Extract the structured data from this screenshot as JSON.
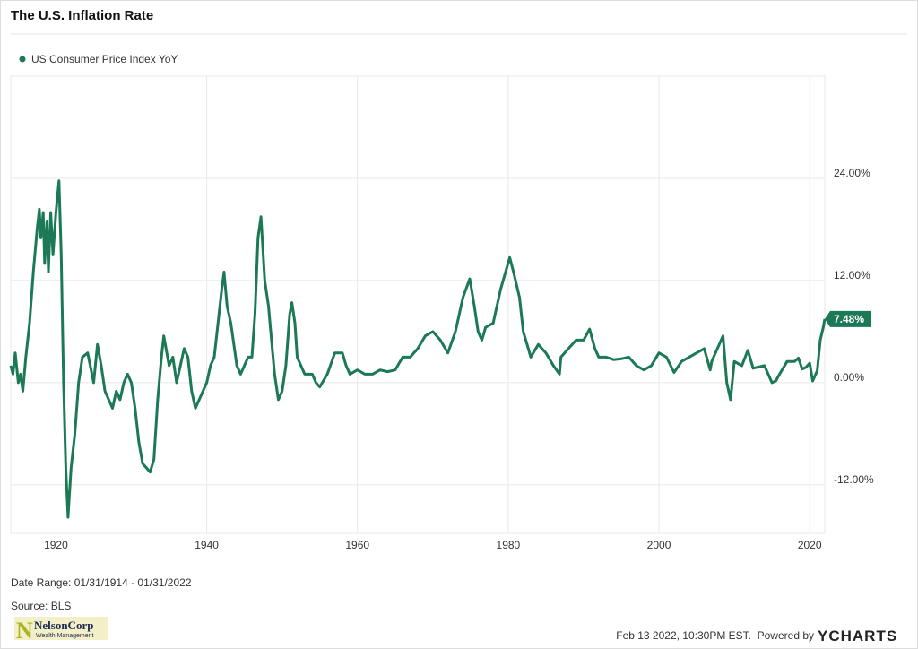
{
  "chart_data": {
    "type": "line",
    "title": "The U.S. Inflation Rate",
    "x": [
      1914.0,
      1914.3,
      1914.6,
      1915.0,
      1915.3,
      1915.6,
      1916.0,
      1916.5,
      1917.0,
      1917.5,
      1917.8,
      1918.0,
      1918.3,
      1918.5,
      1918.8,
      1919.0,
      1919.3,
      1919.6,
      1920.0,
      1920.4,
      1920.7,
      1921.0,
      1921.3,
      1921.6,
      1922.0,
      1922.5,
      1923.0,
      1923.5,
      1924.2,
      1925.0,
      1925.5,
      1926.0,
      1926.5,
      1927.0,
      1927.5,
      1928.0,
      1928.5,
      1929.0,
      1929.5,
      1930.0,
      1930.5,
      1931.0,
      1931.5,
      1932.0,
      1932.5,
      1933.0,
      1933.5,
      1934.0,
      1934.3,
      1935.0,
      1935.5,
      1936.0,
      1936.5,
      1937.0,
      1937.5,
      1938.0,
      1938.5,
      1939.0,
      1939.5,
      1940.0,
      1940.5,
      1941.0,
      1941.5,
      1942.0,
      1942.3,
      1942.7,
      1943.2,
      1944.0,
      1944.5,
      1945.0,
      1945.5,
      1946.0,
      1946.4,
      1946.8,
      1947.2,
      1947.7,
      1948.2,
      1948.7,
      1949.0,
      1949.5,
      1950.0,
      1950.5,
      1951.0,
      1951.3,
      1951.7,
      1952.0,
      1952.5,
      1953.0,
      1954.0,
      1954.5,
      1955.0,
      1956.0,
      1957.0,
      1958.0,
      1958.5,
      1959.0,
      1960.0,
      1961.0,
      1962.0,
      1963.0,
      1964.0,
      1965.0,
      1966.0,
      1967.0,
      1968.0,
      1969.0,
      1970.0,
      1971.0,
      1972.0,
      1973.0,
      1974.0,
      1974.9,
      1975.5,
      1976.0,
      1976.5,
      1977.0,
      1978.0,
      1979.0,
      1980.2,
      1980.7,
      1981.5,
      1982.0,
      1983.0,
      1984.0,
      1985.0,
      1986.0,
      1986.8,
      1987.0,
      1988.0,
      1989.0,
      1990.0,
      1990.8,
      1991.5,
      1992.0,
      1993.0,
      1994.0,
      1995.0,
      1996.0,
      1997.0,
      1998.0,
      1999.0,
      2000.0,
      2001.0,
      2002.0,
      2003.0,
      2004.0,
      2005.0,
      2006.0,
      2006.8,
      2007.0,
      2008.0,
      2008.5,
      2009.0,
      2009.5,
      2010.0,
      2011.0,
      2011.8,
      2012.5,
      2013.0,
      2014.0,
      2015.0,
      2015.5,
      2016.0,
      2017.0,
      2018.0,
      2018.5,
      2019.0,
      2019.5,
      2020.0,
      2020.4,
      2021.0,
      2021.4,
      2021.8,
      2022.0
    ],
    "series": [
      {
        "name": "US Consumer Price Index YoY",
        "color": "#1b7a55",
        "values": [
          2,
          1,
          3.5,
          0,
          1,
          -1,
          3,
          7,
          13,
          18,
          20.4,
          17,
          20,
          14,
          19,
          13,
          20,
          15,
          20,
          23.7,
          15,
          0,
          -10,
          -15.8,
          -10,
          -6,
          0,
          3,
          3.5,
          0,
          4.5,
          2,
          -1,
          -2,
          -3,
          -1,
          -2,
          0,
          1,
          0,
          -3,
          -7,
          -9.5,
          -10,
          -10.5,
          -9,
          -2,
          3,
          5.5,
          2,
          3,
          0,
          2,
          4,
          3,
          -1,
          -3,
          -2,
          -1,
          0,
          2,
          3,
          7,
          11,
          13,
          9,
          7,
          2,
          1,
          2,
          3,
          3,
          8,
          17,
          19.5,
          12,
          9,
          4,
          1,
          -2,
          -1,
          2,
          8,
          9.4,
          7,
          3,
          2,
          1,
          1,
          0,
          -0.5,
          1,
          3.5,
          3.5,
          2,
          1,
          1.5,
          1,
          1,
          1.5,
          1.3,
          1.5,
          3,
          3,
          4,
          5.5,
          6,
          5,
          3.5,
          6,
          10,
          12.2,
          9,
          6,
          5,
          6.5,
          7,
          11,
          14.7,
          13,
          10,
          6,
          3,
          4.5,
          3.5,
          2,
          1,
          3,
          4,
          5,
          5,
          6.3,
          4,
          3,
          3,
          2.7,
          2.8,
          3,
          2,
          1.5,
          2,
          3.5,
          3,
          1.2,
          2.5,
          3,
          3.5,
          4,
          1.5,
          2.5,
          4.5,
          5.5,
          0,
          -2,
          2.5,
          2,
          3.8,
          1.7,
          1.8,
          2,
          0,
          0.2,
          1,
          2.5,
          2.5,
          2.9,
          1.6,
          1.8,
          2.3,
          0.2,
          1.4,
          5,
          6.5,
          7.48
        ]
      }
    ],
    "xlim": [
      1914,
      2022
    ],
    "ylim": [
      -17.7,
      36
    ],
    "xticks": [
      1920,
      1940,
      1960,
      1980,
      2000,
      2020
    ],
    "yticks": [
      {
        "value": -12,
        "label": "-12.00%"
      },
      {
        "value": 0,
        "label": "0.00%"
      },
      {
        "value": 12,
        "label": "12.00%"
      },
      {
        "value": 24,
        "label": "24.00%"
      }
    ],
    "annotation": {
      "x": 2022,
      "y": 7.48,
      "label": "7.48%"
    },
    "grid": true
  },
  "footer": {
    "date_range": "Date Range: 01/31/1914 - 01/31/2022",
    "source": "Source: BLS",
    "timestamp": "Feb 13 2022, 10:30PM EST.",
    "powered_by": "Powered by",
    "brand": "YCHARTS",
    "logo_name": "NelsonCorp",
    "logo_tagline": "Wealth Management"
  }
}
